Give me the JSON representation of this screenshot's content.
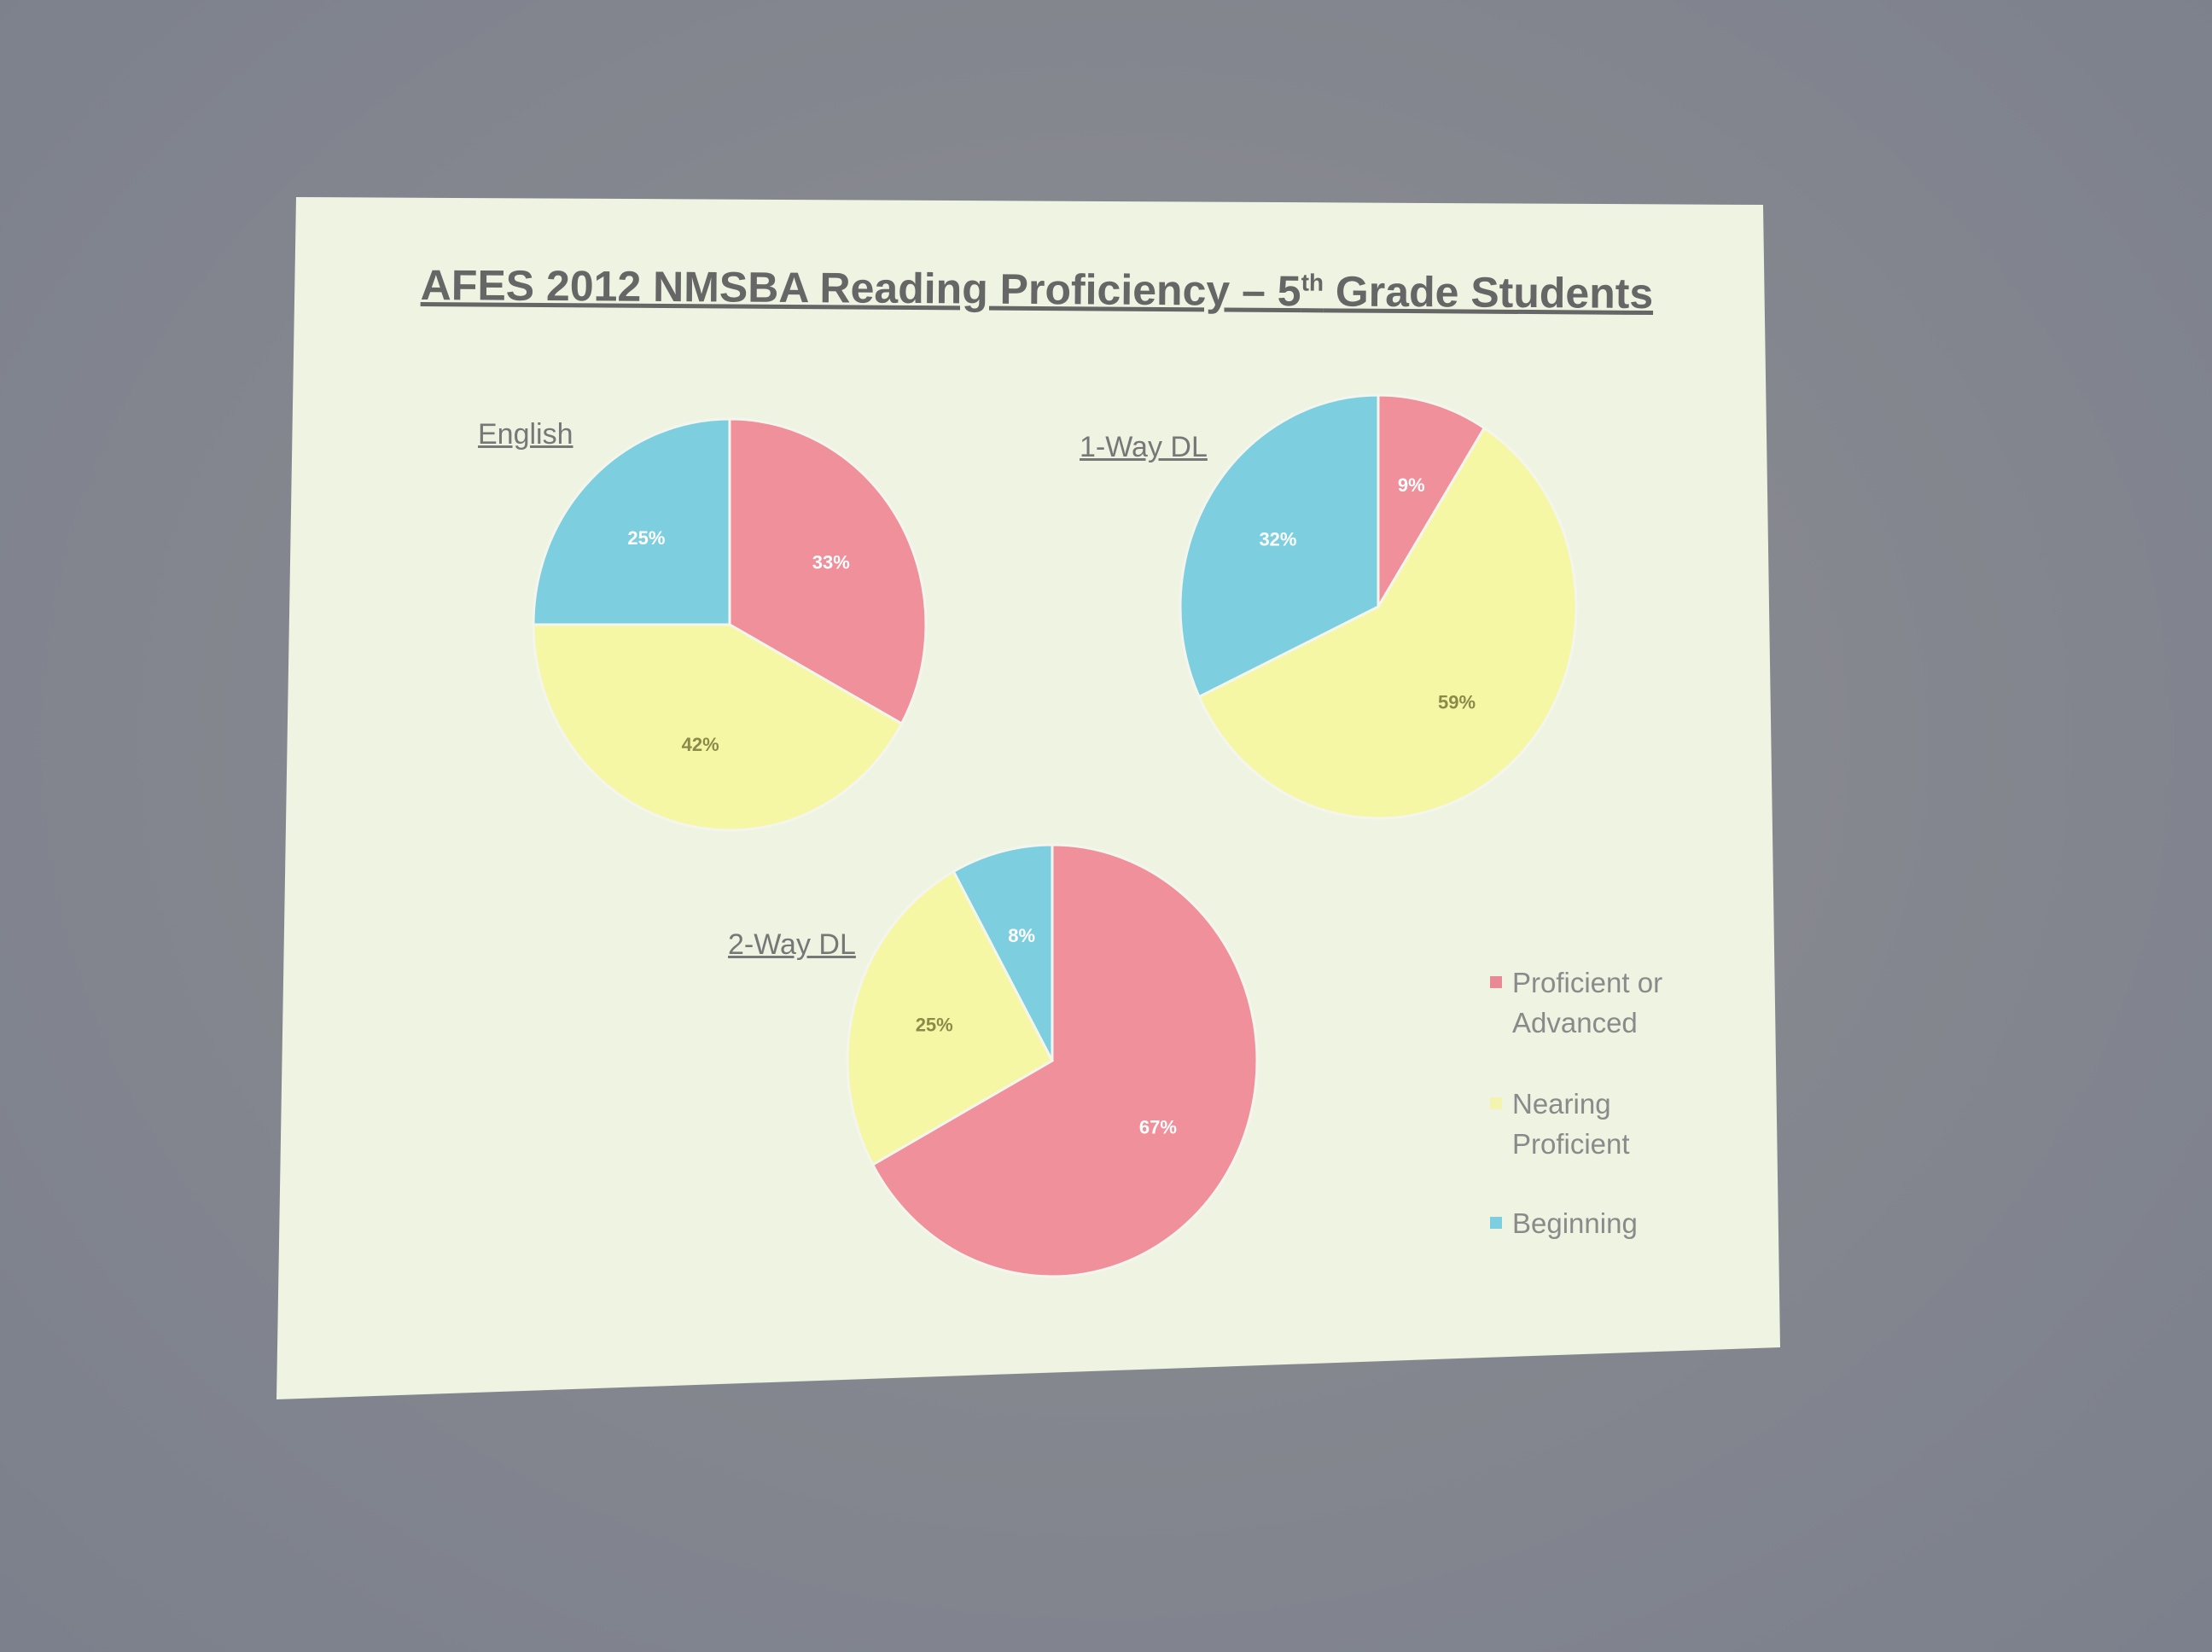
{
  "chart_data": [
    {
      "type": "pie",
      "title": "English",
      "categories": [
        "Proficient or Advanced",
        "Nearing Proficient",
        "Beginning"
      ],
      "values": [
        33,
        42,
        25
      ],
      "labels": [
        "33%",
        "42%",
        "25%"
      ]
    },
    {
      "type": "pie",
      "title": "1-Way DL",
      "categories": [
        "Proficient or Advanced",
        "Nearing Proficient",
        "Beginning"
      ],
      "values": [
        9,
        59,
        32
      ],
      "labels": [
        "9%",
        "59%",
        "32%"
      ]
    },
    {
      "type": "pie",
      "title": "2-Way DL",
      "categories": [
        "Proficient or Advanced",
        "Nearing Proficient",
        "Beginning"
      ],
      "values": [
        67,
        25,
        8
      ],
      "labels": [
        "67%",
        "25%",
        "8%"
      ]
    }
  ],
  "slide": {
    "title_main": "AFES 2012 NMSBA Reading Proficiency – 5",
    "title_sup": "th",
    "title_end": " Grade Students"
  },
  "legend": {
    "position": "right",
    "items": [
      {
        "line1": "Proficient or",
        "line2": "Advanced",
        "color": "#f0909a"
      },
      {
        "line1": "Nearing",
        "line2": "Proficient",
        "color": "#f6f7a4"
      },
      {
        "line1": "Beginning",
        "line2": "",
        "color": "#7dcfe0"
      }
    ]
  },
  "colors": {
    "proficient": "#f0909a",
    "nearing": "#f6f7a4",
    "beginning": "#7dcfe0",
    "slide_bg": "#eef3e2"
  }
}
